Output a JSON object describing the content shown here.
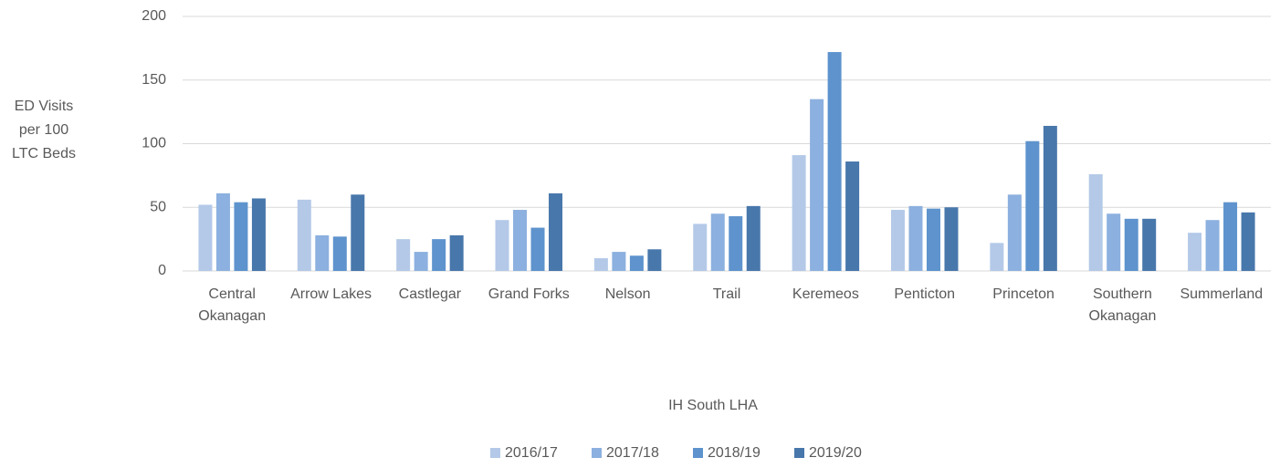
{
  "chart_data": {
    "type": "bar",
    "ylabel": "ED Visits\nper 100\nLTC Beds",
    "xlabel": "IH South LHA",
    "categories": [
      "Central\nOkanagan",
      "Arrow Lakes",
      "Castlegar",
      "Grand Forks",
      "Nelson",
      "Trail",
      "Keremeos",
      "Penticton",
      "Princeton",
      "Southern\nOkanagan",
      "Summerland"
    ],
    "series": [
      {
        "name": "2016/17",
        "color": "#b4c9e8",
        "values": [
          52,
          56,
          25,
          40,
          10,
          37,
          91,
          48,
          22,
          76,
          30
        ]
      },
      {
        "name": "2017/18",
        "color": "#8cb0df",
        "values": [
          61,
          28,
          15,
          48,
          15,
          45,
          135,
          51,
          60,
          45,
          40
        ]
      },
      {
        "name": "2018/19",
        "color": "#5e93cd",
        "values": [
          54,
          27,
          25,
          34,
          12,
          43,
          172,
          49,
          102,
          41,
          54
        ]
      },
      {
        "name": "2019/20",
        "color": "#4877ab",
        "values": [
          57,
          60,
          28,
          61,
          17,
          51,
          86,
          50,
          114,
          41,
          46
        ]
      }
    ],
    "ylim": [
      0,
      200
    ],
    "yticks": [
      0,
      50,
      100,
      150,
      200
    ],
    "grid": true,
    "legend": "bottom"
  }
}
